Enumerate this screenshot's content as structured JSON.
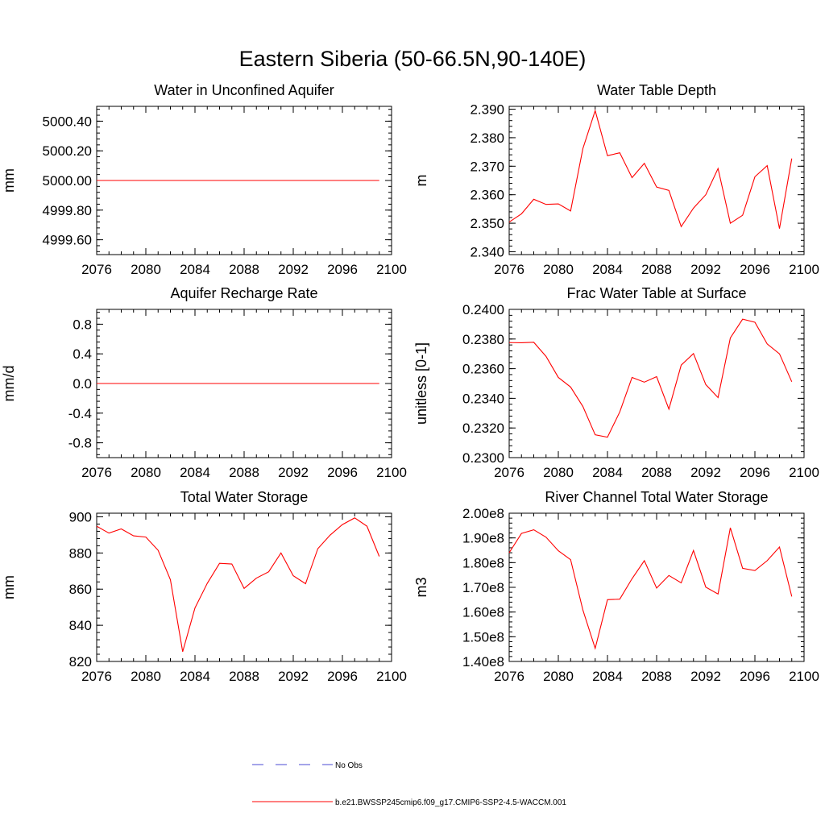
{
  "figure_title": "Eastern Siberia (50-66.5N,90-140E)",
  "legend": {
    "entries": [
      {
        "label": "No Obs",
        "style": "dashed",
        "color": "#4b4bd6"
      },
      {
        "label": "b.e21.BWSSP245cmip6.f09_g17.CMIP6-SSP2-4.5-WACCM.001",
        "style": "solid",
        "color": "#ff0000"
      }
    ]
  },
  "colors": {
    "series": "#ff0000",
    "axis": "#000000"
  },
  "chart_data": [
    {
      "type": "line",
      "title": "Water in Unconfined Aquifer",
      "ylabel": "mm",
      "xlabel": "",
      "xlim": [
        2076,
        2100
      ],
      "ylim": [
        4999.5,
        5000.5
      ],
      "xticks": [
        2076,
        2080,
        2084,
        2088,
        2092,
        2096,
        2100
      ],
      "xtick_labels": [
        "2076",
        "2080",
        "2084",
        "2088",
        "2092",
        "2096",
        "2100"
      ],
      "yticks": [
        4999.6,
        4999.8,
        5000.0,
        5000.2,
        5000.4
      ],
      "ytick_labels": [
        "4999.60",
        "4999.80",
        "5000.00",
        "5000.20",
        "5000.40"
      ],
      "series": [
        {
          "color": "#ff0000",
          "x": [
            2076,
            2077,
            2078,
            2079,
            2080,
            2081,
            2082,
            2083,
            2084,
            2085,
            2086,
            2087,
            2088,
            2089,
            2090,
            2091,
            2092,
            2093,
            2094,
            2095,
            2096,
            2097,
            2098,
            2099
          ],
          "y": [
            5000,
            5000,
            5000,
            5000,
            5000,
            5000,
            5000,
            5000,
            5000,
            5000,
            5000,
            5000,
            5000,
            5000,
            5000,
            5000,
            5000,
            5000,
            5000,
            5000,
            5000,
            5000,
            5000,
            5000
          ]
        }
      ]
    },
    {
      "type": "line",
      "title": "Water Table Depth",
      "ylabel": "m",
      "xlabel": "",
      "xlim": [
        2076,
        2100
      ],
      "ylim": [
        2.339,
        2.391
      ],
      "xticks": [
        2076,
        2080,
        2084,
        2088,
        2092,
        2096,
        2100
      ],
      "xtick_labels": [
        "2076",
        "2080",
        "2084",
        "2088",
        "2092",
        "2096",
        "2100"
      ],
      "yticks": [
        2.34,
        2.35,
        2.36,
        2.37,
        2.38,
        2.39
      ],
      "ytick_labels": [
        "2.340",
        "2.350",
        "2.360",
        "2.370",
        "2.380",
        "2.390"
      ],
      "series": [
        {
          "color": "#ff0000",
          "x": [
            2076,
            2077,
            2078,
            2079,
            2080,
            2081,
            2082,
            2083,
            2084,
            2085,
            2086,
            2087,
            2088,
            2089,
            2090,
            2091,
            2092,
            2093,
            2094,
            2095,
            2096,
            2097,
            2098,
            2099
          ],
          "y": [
            2.3504,
            2.3533,
            2.3584,
            2.3566,
            2.3568,
            2.3543,
            2.3762,
            2.3895,
            2.3737,
            2.3747,
            2.366,
            2.371,
            2.3627,
            2.3615,
            2.3488,
            2.3553,
            2.36,
            2.3692,
            2.35,
            2.3528,
            2.3663,
            2.3702,
            2.3481,
            2.3727
          ]
        }
      ]
    },
    {
      "type": "line",
      "title": "Aquifer Recharge Rate",
      "ylabel": "mm/d",
      "xlabel": "",
      "xlim": [
        2076,
        2100
      ],
      "ylim": [
        -1.0,
        1.0
      ],
      "xticks": [
        2076,
        2080,
        2084,
        2088,
        2092,
        2096,
        2100
      ],
      "xtick_labels": [
        "2076",
        "2080",
        "2084",
        "2088",
        "2092",
        "2096",
        "2100"
      ],
      "yticks": [
        -0.8,
        -0.4,
        0.0,
        0.4,
        0.8
      ],
      "ytick_labels": [
        "-0.8",
        "-0.4",
        "0.0",
        "0.4",
        "0.8"
      ],
      "series": [
        {
          "color": "#ff0000",
          "x": [
            2076,
            2077,
            2078,
            2079,
            2080,
            2081,
            2082,
            2083,
            2084,
            2085,
            2086,
            2087,
            2088,
            2089,
            2090,
            2091,
            2092,
            2093,
            2094,
            2095,
            2096,
            2097,
            2098,
            2099
          ],
          "y": [
            0,
            0,
            0,
            0,
            0,
            0,
            0,
            0,
            0,
            0,
            0,
            0,
            0,
            0,
            0,
            0,
            0,
            0,
            0,
            0,
            0,
            0,
            0,
            0
          ]
        }
      ]
    },
    {
      "type": "line",
      "title": "Frac Water Table at Surface",
      "ylabel": "unitless [0-1]",
      "xlabel": "",
      "xlim": [
        2076,
        2100
      ],
      "ylim": [
        0.23,
        0.24
      ],
      "xticks": [
        2076,
        2080,
        2084,
        2088,
        2092,
        2096,
        2100
      ],
      "xtick_labels": [
        "2076",
        "2080",
        "2084",
        "2088",
        "2092",
        "2096",
        "2100"
      ],
      "yticks": [
        0.23,
        0.232,
        0.234,
        0.236,
        0.238,
        0.24
      ],
      "ytick_labels": [
        "0.2300",
        "0.2320",
        "0.2340",
        "0.2360",
        "0.2380",
        "0.2400"
      ],
      "series": [
        {
          "color": "#ff0000",
          "x": [
            2076,
            2077,
            2078,
            2079,
            2080,
            2081,
            2082,
            2083,
            2084,
            2085,
            2086,
            2087,
            2088,
            2089,
            2090,
            2091,
            2092,
            2093,
            2094,
            2095,
            2096,
            2097,
            2098,
            2099
          ],
          "y": [
            0.23776,
            0.23775,
            0.23778,
            0.23683,
            0.23541,
            0.23476,
            0.23345,
            0.23154,
            0.23138,
            0.23308,
            0.23541,
            0.23509,
            0.23546,
            0.23327,
            0.23624,
            0.23702,
            0.23493,
            0.23405,
            0.23807,
            0.23934,
            0.23913,
            0.23767,
            0.237,
            0.23512
          ]
        }
      ]
    },
    {
      "type": "line",
      "title": "Total Water Storage",
      "ylabel": "mm",
      "xlabel": "",
      "xlim": [
        2076,
        2100
      ],
      "ylim": [
        820,
        902
      ],
      "xticks": [
        2076,
        2080,
        2084,
        2088,
        2092,
        2096,
        2100
      ],
      "xtick_labels": [
        "2076",
        "2080",
        "2084",
        "2088",
        "2092",
        "2096",
        "2100"
      ],
      "yticks": [
        820,
        840,
        860,
        880,
        900
      ],
      "ytick_labels": [
        "820",
        "840",
        "860",
        "880",
        "900"
      ],
      "series": [
        {
          "color": "#ff0000",
          "x": [
            2076,
            2077,
            2078,
            2079,
            2080,
            2081,
            2082,
            2083,
            2084,
            2085,
            2086,
            2087,
            2088,
            2089,
            2090,
            2091,
            2092,
            2093,
            2094,
            2095,
            2096,
            2097,
            2098,
            2099
          ],
          "y": [
            894.8,
            891.0,
            893.3,
            889.5,
            888.8,
            881.5,
            865.2,
            825.4,
            849.6,
            863.2,
            874.3,
            873.9,
            860.4,
            866.1,
            869.6,
            880.0,
            867.4,
            863.0,
            882.4,
            889.9,
            895.7,
            899.4,
            894.8,
            878.1
          ]
        }
      ]
    },
    {
      "type": "line",
      "title": "River Channel Total Water Storage",
      "ylabel": "m3",
      "xlabel": "",
      "xlim": [
        2076,
        2100
      ],
      "ylim": [
        140000000,
        200000000
      ],
      "xticks": [
        2076,
        2080,
        2084,
        2088,
        2092,
        2096,
        2100
      ],
      "xtick_labels": [
        "2076",
        "2080",
        "2084",
        "2088",
        "2092",
        "2096",
        "2100"
      ],
      "yticks": [
        140000000,
        150000000,
        160000000,
        170000000,
        180000000,
        190000000,
        200000000
      ],
      "ytick_labels": [
        "1.40e8",
        "1.50e8",
        "1.60e8",
        "1.70e8",
        "1.80e8",
        "1.90e8",
        "2.00e8"
      ],
      "series": [
        {
          "color": "#ff0000",
          "x": [
            2076,
            2077,
            2078,
            2079,
            2080,
            2081,
            2082,
            2083,
            2084,
            2085,
            2086,
            2087,
            2088,
            2089,
            2090,
            2091,
            2092,
            2093,
            2094,
            2095,
            2096,
            2097,
            2098,
            2099
          ],
          "y": [
            184000000,
            191800000,
            193300000,
            190300000,
            184800000,
            181200000,
            160800000,
            145300000,
            165000000,
            165200000,
            173500000,
            180800000,
            169700000,
            174800000,
            171800000,
            184900000,
            170100000,
            167300000,
            194100000,
            177700000,
            176800000,
            180800000,
            186300000,
            166300000
          ]
        }
      ]
    }
  ]
}
